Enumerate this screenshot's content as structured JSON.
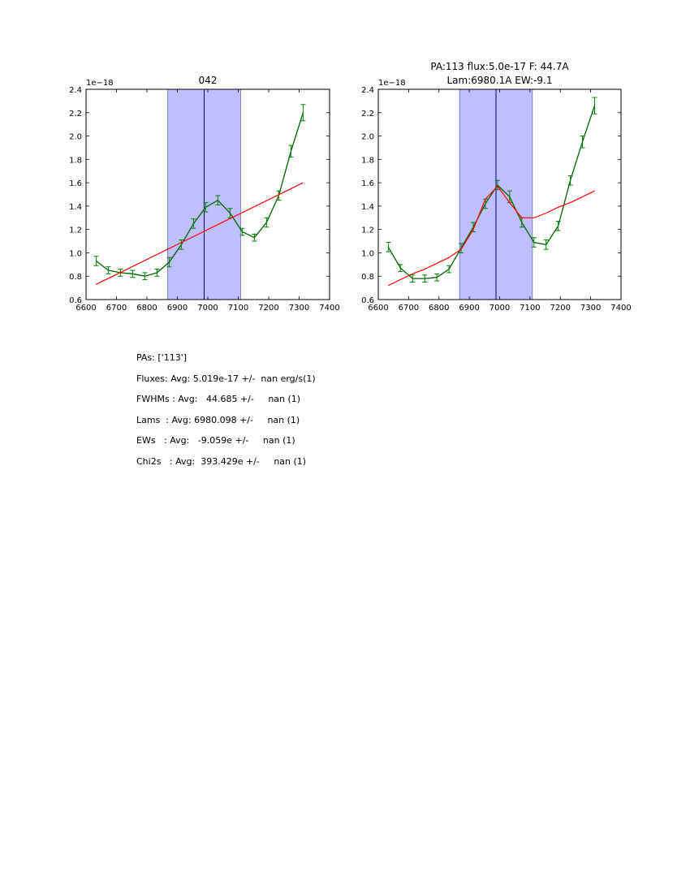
{
  "chart_data": [
    {
      "type": "line",
      "title": "042",
      "exponent_label": "1e−18",
      "xlim": [
        6600,
        7400
      ],
      "ylim": [
        0.6,
        2.4
      ],
      "x_ticks": [
        6600,
        6700,
        6800,
        6900,
        7000,
        7100,
        7200,
        7300,
        7400
      ],
      "y_ticks": [
        "0.6",
        "0.8",
        "1.0",
        "1.2",
        "1.4",
        "1.6",
        "1.8",
        "2.0",
        "2.2",
        "2.4"
      ],
      "shaded_region": [
        6868,
        7108
      ],
      "vline": 6988,
      "colors": {
        "data": "#006400",
        "errorbar": "#008000",
        "model": "#ff0000",
        "shade": "#0000ff",
        "vline": "#000080"
      },
      "series": [
        {
          "name": "data",
          "x": [
            6633,
            6673,
            6713,
            6753,
            6793,
            6833,
            6873,
            6913,
            6953,
            6993,
            7033,
            7073,
            7113,
            7153,
            7193,
            7233,
            7273,
            7313
          ],
          "y": [
            0.93,
            0.85,
            0.83,
            0.82,
            0.8,
            0.83,
            0.92,
            1.07,
            1.25,
            1.39,
            1.45,
            1.34,
            1.18,
            1.13,
            1.26,
            1.49,
            1.87,
            2.2
          ],
          "err": [
            0.04,
            0.03,
            0.03,
            0.03,
            0.03,
            0.03,
            0.04,
            0.04,
            0.04,
            0.04,
            0.04,
            0.04,
            0.03,
            0.03,
            0.04,
            0.04,
            0.05,
            0.07
          ]
        },
        {
          "name": "model",
          "x": [
            6633,
            7313
          ],
          "y": [
            0.73,
            1.6
          ]
        }
      ]
    },
    {
      "type": "line",
      "title": "PA:113 flux:5.0e-17 F: 44.7A",
      "subtitle": "Lam:6980.1A EW:-9.1",
      "exponent_label": "1e−18",
      "xlim": [
        6600,
        7400
      ],
      "ylim": [
        0.6,
        2.4
      ],
      "x_ticks": [
        6600,
        6700,
        6800,
        6900,
        7000,
        7100,
        7200,
        7300,
        7400
      ],
      "y_ticks": [
        "0.6",
        "0.8",
        "1.0",
        "1.2",
        "1.4",
        "1.6",
        "1.8",
        "2.0",
        "2.2",
        "2.4"
      ],
      "shaded_region": [
        6868,
        7108
      ],
      "vline": 6988,
      "colors": {
        "data": "#006400",
        "errorbar": "#008000",
        "model": "#ff0000",
        "shade": "#0000ff",
        "vline": "#000080"
      },
      "series": [
        {
          "name": "data",
          "x": [
            6633,
            6673,
            6713,
            6753,
            6793,
            6833,
            6873,
            6913,
            6953,
            6993,
            7033,
            7073,
            7113,
            7153,
            7193,
            7233,
            7273,
            7313
          ],
          "y": [
            1.05,
            0.87,
            0.78,
            0.78,
            0.79,
            0.86,
            1.04,
            1.22,
            1.42,
            1.58,
            1.48,
            1.26,
            1.09,
            1.07,
            1.23,
            1.62,
            1.95,
            2.26
          ],
          "err": [
            0.04,
            0.03,
            0.03,
            0.03,
            0.03,
            0.03,
            0.04,
            0.04,
            0.04,
            0.04,
            0.05,
            0.04,
            0.04,
            0.04,
            0.04,
            0.04,
            0.05,
            0.07
          ]
        },
        {
          "name": "model",
          "x": [
            6633,
            6673,
            6713,
            6753,
            6793,
            6833,
            6873,
            6913,
            6953,
            6993,
            7033,
            7073,
            7113,
            7153,
            7193,
            7233,
            7273,
            7313
          ],
          "y": [
            0.72,
            0.77,
            0.82,
            0.86,
            0.91,
            0.96,
            1.03,
            1.2,
            1.46,
            1.57,
            1.43,
            1.3,
            1.3,
            1.34,
            1.39,
            1.43,
            1.48,
            1.53
          ]
        }
      ]
    }
  ],
  "stats": {
    "pas": "PAs: ['113']",
    "fluxes": "Fluxes: Avg: 5.019e-17 +/-  nan erg/s(1)",
    "fwhms": "FWHMs : Avg:   44.685 +/-     nan (1)",
    "lams": "Lams  : Avg: 6980.098 +/-     nan (1)",
    "ews": "EWs   : Avg:   -9.059e +/-     nan (1)",
    "chi2s": "Chi2s   : Avg:  393.429e +/-     nan (1)"
  }
}
